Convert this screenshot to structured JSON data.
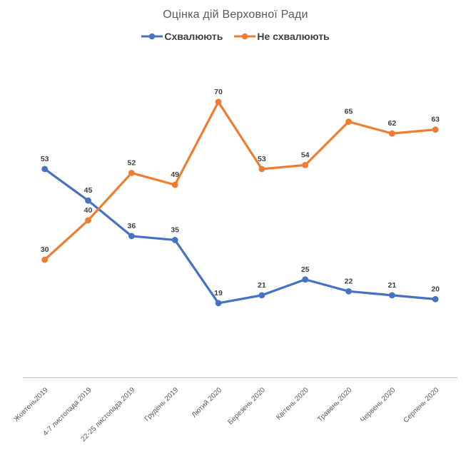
{
  "chart_data": {
    "type": "line",
    "title": "Оцінка дій Верховної Ради",
    "categories": [
      "Жовтень2019",
      "4-7 листопада 2019",
      "22-25 листопада 2019",
      "Грудень 2019",
      "Лютий 2020",
      "Березень 2020",
      "Квітень 2020",
      "Травень 2020",
      "Червень 2020",
      "Серпень 2020"
    ],
    "series": [
      {
        "name": "Схвалюють",
        "color": "#4472C4",
        "values": [
          53,
          45,
          36,
          35,
          19,
          21,
          25,
          22,
          21,
          20
        ]
      },
      {
        "name": "Не схвалюють",
        "color": "#ED7D31",
        "values": [
          30,
          40,
          52,
          49,
          70,
          53,
          54,
          65,
          62,
          63
        ]
      }
    ],
    "ylim": [
      0,
      80
    ],
    "grid": false,
    "y_axis_visible": false,
    "data_labels": true,
    "legend_position": "top",
    "x_label_rotation_deg": -45
  },
  "colors": {
    "background": "#FFFFFF",
    "title_text": "#595959",
    "legend_text": "#404040",
    "data_label_text": "#404040",
    "axis_label_text": "#595959",
    "axis_line": "#BFBFBF",
    "series_approve": "#4472C4",
    "series_disapprove": "#ED7D31"
  }
}
